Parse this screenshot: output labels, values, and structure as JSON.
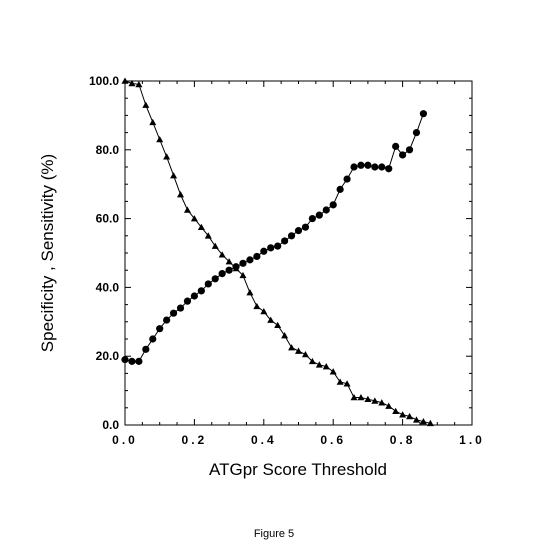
{
  "chart_data": {
    "type": "line",
    "title": "",
    "xlabel": "ATGpr Score Threshold",
    "ylabel": "Specificity , Sensitivity (%)",
    "xlim": [
      0.0,
      1.0
    ],
    "ylim": [
      0.0,
      100.0
    ],
    "x_ticks": [
      "0.0",
      "0.2",
      "0.4",
      "0.6",
      "0.8",
      "1.0"
    ],
    "y_ticks": [
      "0.0",
      "20.0",
      "40.0",
      "60.0",
      "80.0",
      "100.0"
    ],
    "grid": false,
    "legend": "none",
    "series": [
      {
        "marker": "triangle",
        "color": "#000000",
        "x": [
          0.0,
          0.02,
          0.04,
          0.06,
          0.08,
          0.1,
          0.12,
          0.14,
          0.16,
          0.18,
          0.2,
          0.22,
          0.24,
          0.26,
          0.28,
          0.3,
          0.32,
          0.34,
          0.36,
          0.38,
          0.4,
          0.42,
          0.44,
          0.46,
          0.48,
          0.5,
          0.52,
          0.54,
          0.56,
          0.58,
          0.6,
          0.62,
          0.64,
          0.66,
          0.68,
          0.7,
          0.72,
          0.74,
          0.76,
          0.78,
          0.8,
          0.82,
          0.84,
          0.86,
          0.88
        ],
        "y": [
          100.0,
          99.3,
          99.0,
          93.0,
          88.0,
          83.0,
          78.0,
          72.5,
          67.0,
          62.5,
          60.0,
          57.5,
          55.0,
          52.0,
          49.5,
          47.5,
          45.5,
          43.5,
          38.5,
          34.5,
          33.0,
          30.5,
          29.0,
          26.0,
          22.5,
          21.5,
          20.5,
          18.5,
          17.5,
          17.0,
          15.5,
          12.5,
          12.0,
          8.0,
          8.0,
          7.5,
          7.0,
          6.5,
          5.5,
          4.0,
          3.0,
          2.5,
          1.5,
          1.0,
          0.5
        ]
      },
      {
        "marker": "circle",
        "color": "#000000",
        "x": [
          0.0,
          0.02,
          0.04,
          0.06,
          0.08,
          0.1,
          0.12,
          0.14,
          0.16,
          0.18,
          0.2,
          0.22,
          0.24,
          0.26,
          0.28,
          0.3,
          0.32,
          0.34,
          0.36,
          0.38,
          0.4,
          0.42,
          0.44,
          0.46,
          0.48,
          0.5,
          0.52,
          0.54,
          0.56,
          0.58,
          0.6,
          0.62,
          0.64,
          0.66,
          0.68,
          0.7,
          0.72,
          0.74,
          0.76,
          0.78,
          0.8,
          0.82,
          0.84,
          0.86
        ],
        "y": [
          19.0,
          18.5,
          18.5,
          22.0,
          25.0,
          28.0,
          30.5,
          32.5,
          34.0,
          36.0,
          37.5,
          39.0,
          41.0,
          42.5,
          44.0,
          45.0,
          46.0,
          47.0,
          48.0,
          49.0,
          50.5,
          51.5,
          52.0,
          53.5,
          55.0,
          56.5,
          57.5,
          60.0,
          61.0,
          62.5,
          64.0,
          68.5,
          71.5,
          75.0,
          75.5,
          75.5,
          75.0,
          75.0,
          74.5,
          81.0,
          78.5,
          80.0,
          85.0,
          90.5
        ]
      }
    ]
  },
  "caption": "Figure 5"
}
